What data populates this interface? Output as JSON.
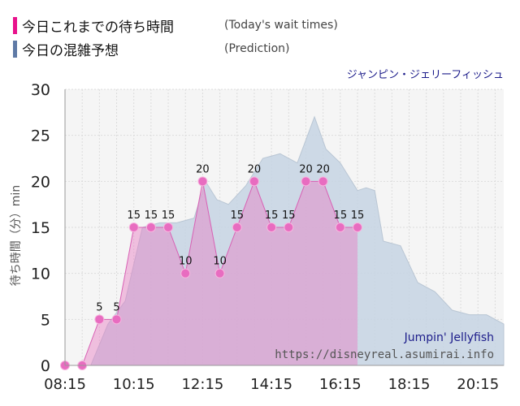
{
  "legend": {
    "items": [
      {
        "label": "今日これまでの待ち時間",
        "sub": "(Today's wait times)",
        "color": "#e8128c"
      },
      {
        "label": "今日の混雑予想",
        "sub": "(Prediction)",
        "color": "#5f7aa6"
      }
    ]
  },
  "chart_data": {
    "type": "area",
    "title": "ジャンピン・ジェリーフィッシュ",
    "watermark_name": "Jumpin' Jellyfish",
    "watermark_url": "https://disneyreal.asumirai.info",
    "ylabel": "待ち時間（分）min",
    "ylim": [
      0,
      30
    ],
    "yticks": [
      0,
      5,
      10,
      15,
      20,
      25,
      30
    ],
    "xlim": [
      "08:15",
      "21:00"
    ],
    "xticks": [
      "08:15",
      "10:15",
      "12:15",
      "14:15",
      "16:15",
      "18:15",
      "20:15"
    ],
    "series": [
      {
        "name": "今日の混雑予想",
        "color": "#c5d4e3",
        "x": [
          "08:15",
          "09:00",
          "09:30",
          "10:00",
          "10:30",
          "11:00",
          "11:30",
          "12:00",
          "12:20",
          "12:40",
          "13:00",
          "13:30",
          "14:00",
          "14:30",
          "15:00",
          "15:30",
          "15:50",
          "16:15",
          "16:45",
          "17:00",
          "17:15",
          "17:30",
          "18:00",
          "18:30",
          "19:00",
          "19:30",
          "20:00",
          "20:30",
          "21:00"
        ],
        "values": [
          0,
          0,
          4.5,
          7,
          15,
          15.5,
          15.5,
          16,
          20,
          18,
          17.5,
          19.5,
          22.5,
          23,
          22,
          27,
          23.5,
          22,
          19,
          19.3,
          19,
          13.5,
          13,
          9,
          8,
          6,
          5.5,
          5.5,
          4.5
        ]
      },
      {
        "name": "今日これまでの待ち時間",
        "color": "#e8128c",
        "x": [
          "08:15",
          "08:45",
          "09:15",
          "09:45",
          "10:15",
          "10:45",
          "11:15",
          "11:45",
          "12:15",
          "12:45",
          "13:15",
          "13:45",
          "14:15",
          "14:45",
          "15:15",
          "15:45",
          "16:15",
          "16:45"
        ],
        "values": [
          0,
          0,
          5,
          5,
          15,
          15,
          15,
          10,
          20,
          10,
          15,
          20,
          15,
          15,
          20,
          20,
          15,
          15
        ]
      }
    ],
    "grid": true,
    "legend_position": "top-left"
  }
}
